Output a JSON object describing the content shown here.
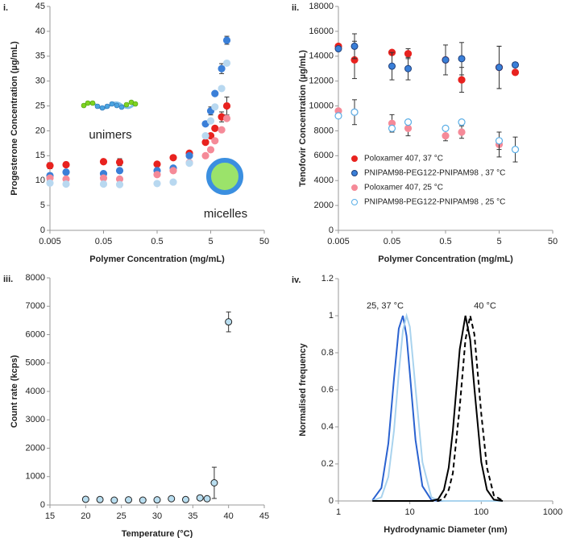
{
  "chart_data": [
    {
      "type": "scatter",
      "label": "i.",
      "xlabel": "Polymer Concentration (mg/mL)",
      "ylabel": "Progesterone Concentration (µg/mL)",
      "xscale": "log",
      "xlim": [
        0.005,
        50
      ],
      "xticks": [
        0.005,
        0.05,
        0.5,
        5,
        50
      ],
      "ylim": [
        0,
        45
      ],
      "yticks": [
        0,
        5,
        10,
        15,
        20,
        25,
        30,
        35,
        40,
        45
      ],
      "x": [
        0.005,
        0.01,
        0.05,
        0.1,
        0.5,
        1,
        2,
        4,
        5,
        6,
        8,
        10
      ],
      "series": [
        {
          "color": "#e8221f",
          "values": [
            13,
            13.2,
            13.8,
            13.7,
            13.3,
            14.6,
            15.5,
            17.7,
            19,
            20.5,
            22.8,
            25
          ],
          "errors": [
            0.6,
            0.5,
            null,
            0.7,
            0.4,
            null,
            null,
            null,
            null,
            null,
            1,
            1.8
          ]
        },
        {
          "color": "#3a7fd8",
          "values": [
            11,
            11.7,
            11.4,
            12,
            12,
            12.5,
            15,
            21.4,
            24,
            27.5,
            32.5,
            38.2
          ],
          "errors": [
            0.5,
            0.5,
            null,
            null,
            null,
            null,
            null,
            null,
            0.8,
            null,
            1,
            0.8
          ]
        },
        {
          "color": "#f58a98",
          "values": [
            10.5,
            10.3,
            10.5,
            10.3,
            11.2,
            12,
            13.6,
            15,
            16.2,
            18,
            20.2,
            22.5
          ],
          "errors": [
            null,
            null,
            null,
            null,
            null,
            null,
            null,
            null,
            null,
            null,
            null,
            null
          ]
        },
        {
          "color": "#b8d8f0",
          "values": [
            9.5,
            9.3,
            9.3,
            9.2,
            9.4,
            9.7,
            13.5,
            19,
            22,
            24.8,
            28.5,
            33.6
          ],
          "errors": [
            null,
            null,
            null,
            null,
            null,
            null,
            null,
            null,
            null,
            null,
            null,
            null
          ]
        }
      ],
      "annotations": [
        "unimers",
        "micelles"
      ]
    },
    {
      "type": "scatter",
      "label": "ii.",
      "xlabel": "Polymer Concentration (mg/mL)",
      "ylabel": "Tenofovir Concentration (µg/mL)",
      "xscale": "log",
      "xlim": [
        0.005,
        50
      ],
      "xticks": [
        0.005,
        0.05,
        0.5,
        5,
        50
      ],
      "ylim": [
        0,
        18000
      ],
      "yticks": [
        0,
        2000,
        4000,
        6000,
        8000,
        10000,
        12000,
        14000,
        16000,
        18000
      ],
      "x": [
        0.005,
        0.01,
        0.05,
        0.1,
        0.5,
        1,
        5,
        10
      ],
      "legend": "center-left",
      "series": [
        {
          "name": "Poloxamer 407, 37 °C",
          "color": "#e8221f",
          "values": [
            14800,
            13700,
            14300,
            14200,
            13700,
            12100,
            13100,
            12700
          ],
          "errors": [
            null,
            1500,
            null,
            400,
            null,
            1000,
            1700,
            null
          ]
        },
        {
          "name": "PNIPAM98-PEG122-PNIPAM98 , 37 °C",
          "color": "#3a7fd8",
          "edgecolor": "#1f3f7a",
          "values": [
            14600,
            14800,
            13200,
            13000,
            13700,
            13800,
            13100,
            13300
          ],
          "errors": [
            null,
            1000,
            1100,
            900,
            1200,
            1300,
            1700,
            200
          ]
        },
        {
          "name": "Poloxamer 407, 25 °C",
          "color": "#f58a98",
          "values": [
            9600,
            9500,
            8600,
            8200,
            7600,
            7900,
            6900,
            null
          ],
          "errors": [
            null,
            1000,
            700,
            600,
            400,
            500,
            1000,
            null
          ]
        },
        {
          "name": "PNIPAM98-PEG122-PNIPAM98 , 25 °C",
          "color": "#5aaee6",
          "hollow": true,
          "values": [
            9200,
            9500,
            8200,
            8700,
            8200,
            8700,
            7200,
            6500
          ],
          "errors": [
            null,
            null,
            null,
            null,
            null,
            null,
            700,
            1000
          ]
        }
      ]
    },
    {
      "type": "scatter",
      "label": "iii.",
      "xlabel": "Temperature (°C)",
      "ylabel": "Count rate (kcps)",
      "xlim": [
        15,
        45
      ],
      "xticks": [
        15,
        20,
        25,
        30,
        35,
        40,
        45
      ],
      "ylim": [
        0,
        8000
      ],
      "yticks": [
        0,
        1000,
        2000,
        3000,
        4000,
        5000,
        6000,
        7000,
        8000
      ],
      "x": [
        20,
        22,
        24,
        26,
        28,
        30,
        32,
        34,
        36,
        37,
        38,
        40
      ],
      "series": [
        {
          "color": "#b9def0",
          "edgecolor": "#222222",
          "values": [
            200,
            190,
            170,
            180,
            170,
            180,
            220,
            190,
            250,
            220,
            780,
            6450
          ],
          "errors": [
            null,
            null,
            null,
            null,
            null,
            null,
            null,
            null,
            null,
            null,
            550,
            350
          ]
        }
      ]
    },
    {
      "type": "line",
      "label": "iv.",
      "xlabel": "Hydrodynamic Diameter (nm)",
      "ylabel": "Normalised frequency",
      "xscale": "log",
      "xlim": [
        1,
        1000
      ],
      "xticks": [
        1,
        10,
        100,
        1000
      ],
      "ylim": [
        0,
        1.2
      ],
      "yticks": [
        0,
        0.2,
        0.4,
        0.6,
        0.8,
        1,
        1.2
      ],
      "x": [
        3,
        4,
        5,
        6,
        7,
        8,
        9,
        10,
        12,
        15,
        20,
        25,
        30,
        35,
        40,
        50,
        60,
        70,
        80,
        100,
        120,
        150,
        200
      ],
      "series": [
        {
          "color": "#2a62d0",
          "values": [
            0.004,
            0.07,
            0.31,
            0.66,
            0.93,
            1,
            0.89,
            0.69,
            0.33,
            0.08,
            0.005,
            0,
            0,
            0,
            0,
            0,
            0,
            0,
            0,
            0,
            0,
            0,
            0
          ]
        },
        {
          "color": "#a9d3ee",
          "values": [
            0.001,
            0.02,
            0.13,
            0.38,
            0.69,
            0.92,
            1,
            0.94,
            0.61,
            0.21,
            0.02,
            0.002,
            0,
            0,
            0,
            0,
            0,
            0,
            0,
            0,
            0,
            0,
            0
          ]
        },
        {
          "color": "#000000",
          "values": [
            0,
            0,
            0,
            0,
            0,
            0,
            0,
            0,
            0,
            0,
            0,
            0.01,
            0.06,
            0.18,
            0.38,
            0.82,
            1,
            0.87,
            0.61,
            0.21,
            0.06,
            0.007,
            0
          ]
        },
        {
          "color": "#000000",
          "dashed": true,
          "values": [
            0,
            0,
            0,
            0,
            0,
            0,
            0,
            0,
            0,
            0,
            0,
            0,
            0.014,
            0.06,
            0.15,
            0.51,
            0.87,
            1,
            0.9,
            0.47,
            0.18,
            0.03,
            0.001
          ]
        }
      ],
      "annotations": [
        "25, 37 °C",
        "40 °C"
      ]
    }
  ]
}
